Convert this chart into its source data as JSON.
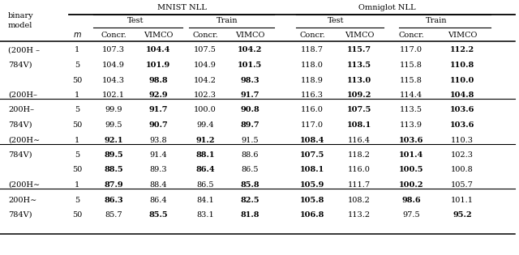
{
  "title_mnist": "MNIST NLL",
  "title_omniglot": "Omniglot NLL",
  "row_groups": [
    {
      "label": [
        "(200H –",
        "784V)"
      ],
      "m": [
        "1",
        "5",
        "50"
      ],
      "data": [
        [
          "107.3",
          "104.4",
          "107.5",
          "104.2",
          "118.7",
          "115.7",
          "117.0",
          "112.2"
        ],
        [
          "104.9",
          "101.9",
          "104.9",
          "101.5",
          "118.0",
          "113.5",
          "115.8",
          "110.8"
        ],
        [
          "104.3",
          "98.8",
          "104.2",
          "98.3",
          "118.9",
          "113.0",
          "115.8",
          "110.0"
        ]
      ],
      "bold": [
        [
          false,
          true,
          false,
          true,
          false,
          true,
          false,
          true
        ],
        [
          false,
          true,
          false,
          true,
          false,
          true,
          false,
          true
        ],
        [
          false,
          true,
          false,
          true,
          false,
          true,
          false,
          true
        ]
      ]
    },
    {
      "label": [
        "(200H–",
        "200H–",
        "784V)"
      ],
      "m": [
        "1",
        "5",
        "50"
      ],
      "data": [
        [
          "102.1",
          "92.9",
          "102.3",
          "91.7",
          "116.3",
          "109.2",
          "114.4",
          "104.8"
        ],
        [
          "99.9",
          "91.7",
          "100.0",
          "90.8",
          "116.0",
          "107.5",
          "113.5",
          "103.6"
        ],
        [
          "99.5",
          "90.7",
          "99.4",
          "89.7",
          "117.0",
          "108.1",
          "113.9",
          "103.6"
        ]
      ],
      "bold": [
        [
          false,
          true,
          false,
          true,
          false,
          true,
          false,
          true
        ],
        [
          false,
          true,
          false,
          true,
          false,
          true,
          false,
          true
        ],
        [
          false,
          true,
          false,
          true,
          false,
          true,
          false,
          true
        ]
      ]
    },
    {
      "label": [
        "(200H∼",
        "784V)"
      ],
      "m": [
        "1",
        "5",
        "50"
      ],
      "data": [
        [
          "92.1",
          "93.8",
          "91.2",
          "91.5",
          "108.4",
          "116.4",
          "103.6",
          "110.3"
        ],
        [
          "89.5",
          "91.4",
          "88.1",
          "88.6",
          "107.5",
          "118.2",
          "101.4",
          "102.3"
        ],
        [
          "88.5",
          "89.3",
          "86.4",
          "86.5",
          "108.1",
          "116.0",
          "100.5",
          "100.8"
        ]
      ],
      "bold": [
        [
          true,
          false,
          true,
          false,
          true,
          false,
          true,
          false
        ],
        [
          true,
          false,
          true,
          false,
          true,
          false,
          true,
          false
        ],
        [
          true,
          false,
          true,
          false,
          true,
          false,
          true,
          false
        ]
      ]
    },
    {
      "label": [
        "(200H∼",
        "200H∼",
        "784V)"
      ],
      "m": [
        "1",
        "5",
        "50"
      ],
      "data": [
        [
          "87.9",
          "88.4",
          "86.5",
          "85.8",
          "105.9",
          "111.7",
          "100.2",
          "105.7"
        ],
        [
          "86.3",
          "86.4",
          "84.1",
          "82.5",
          "105.8",
          "108.2",
          "98.6",
          "101.1"
        ],
        [
          "85.7",
          "85.5",
          "83.1",
          "81.8",
          "106.8",
          "113.2",
          "97.5",
          "95.2"
        ]
      ],
      "bold": [
        [
          true,
          false,
          false,
          true,
          true,
          false,
          true,
          false
        ],
        [
          true,
          false,
          false,
          true,
          true,
          false,
          true,
          false
        ],
        [
          false,
          true,
          false,
          true,
          true,
          false,
          false,
          true
        ]
      ]
    }
  ]
}
